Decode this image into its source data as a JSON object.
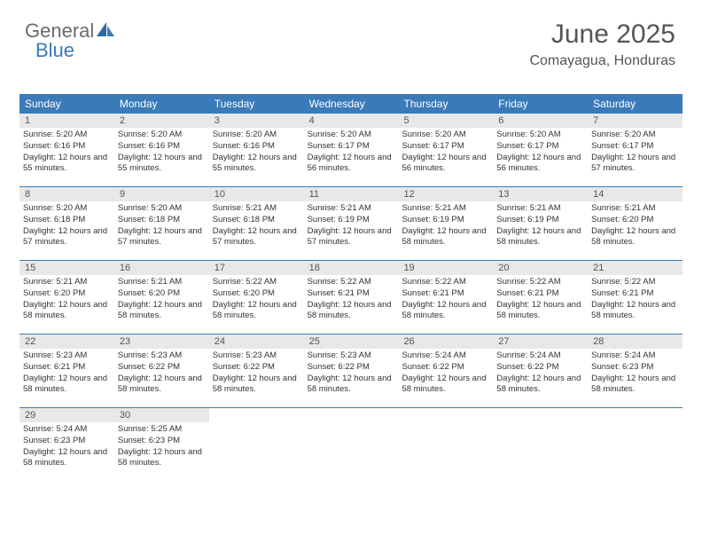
{
  "logo": {
    "part1": "General",
    "part2": "Blue"
  },
  "title": {
    "month": "June 2025",
    "location": "Comayagua, Honduras"
  },
  "colors": {
    "header_bg": "#3a7ab8",
    "header_text": "#ffffff",
    "daynum_bg": "#e8e8e8",
    "body_text": "#333333",
    "row_border": "#3a7ab8",
    "logo_gray": "#6b6b6b",
    "logo_blue": "#3a7ab8"
  },
  "weekdays": [
    "Sunday",
    "Monday",
    "Tuesday",
    "Wednesday",
    "Thursday",
    "Friday",
    "Saturday"
  ],
  "weeks": [
    [
      {
        "n": "1",
        "sr": "5:20 AM",
        "ss": "6:16 PM",
        "dl": "12 hours and 55 minutes."
      },
      {
        "n": "2",
        "sr": "5:20 AM",
        "ss": "6:16 PM",
        "dl": "12 hours and 55 minutes."
      },
      {
        "n": "3",
        "sr": "5:20 AM",
        "ss": "6:16 PM",
        "dl": "12 hours and 55 minutes."
      },
      {
        "n": "4",
        "sr": "5:20 AM",
        "ss": "6:17 PM",
        "dl": "12 hours and 56 minutes."
      },
      {
        "n": "5",
        "sr": "5:20 AM",
        "ss": "6:17 PM",
        "dl": "12 hours and 56 minutes."
      },
      {
        "n": "6",
        "sr": "5:20 AM",
        "ss": "6:17 PM",
        "dl": "12 hours and 56 minutes."
      },
      {
        "n": "7",
        "sr": "5:20 AM",
        "ss": "6:17 PM",
        "dl": "12 hours and 57 minutes."
      }
    ],
    [
      {
        "n": "8",
        "sr": "5:20 AM",
        "ss": "6:18 PM",
        "dl": "12 hours and 57 minutes."
      },
      {
        "n": "9",
        "sr": "5:20 AM",
        "ss": "6:18 PM",
        "dl": "12 hours and 57 minutes."
      },
      {
        "n": "10",
        "sr": "5:21 AM",
        "ss": "6:18 PM",
        "dl": "12 hours and 57 minutes."
      },
      {
        "n": "11",
        "sr": "5:21 AM",
        "ss": "6:19 PM",
        "dl": "12 hours and 57 minutes."
      },
      {
        "n": "12",
        "sr": "5:21 AM",
        "ss": "6:19 PM",
        "dl": "12 hours and 58 minutes."
      },
      {
        "n": "13",
        "sr": "5:21 AM",
        "ss": "6:19 PM",
        "dl": "12 hours and 58 minutes."
      },
      {
        "n": "14",
        "sr": "5:21 AM",
        "ss": "6:20 PM",
        "dl": "12 hours and 58 minutes."
      }
    ],
    [
      {
        "n": "15",
        "sr": "5:21 AM",
        "ss": "6:20 PM",
        "dl": "12 hours and 58 minutes."
      },
      {
        "n": "16",
        "sr": "5:21 AM",
        "ss": "6:20 PM",
        "dl": "12 hours and 58 minutes."
      },
      {
        "n": "17",
        "sr": "5:22 AM",
        "ss": "6:20 PM",
        "dl": "12 hours and 58 minutes."
      },
      {
        "n": "18",
        "sr": "5:22 AM",
        "ss": "6:21 PM",
        "dl": "12 hours and 58 minutes."
      },
      {
        "n": "19",
        "sr": "5:22 AM",
        "ss": "6:21 PM",
        "dl": "12 hours and 58 minutes."
      },
      {
        "n": "20",
        "sr": "5:22 AM",
        "ss": "6:21 PM",
        "dl": "12 hours and 58 minutes."
      },
      {
        "n": "21",
        "sr": "5:22 AM",
        "ss": "6:21 PM",
        "dl": "12 hours and 58 minutes."
      }
    ],
    [
      {
        "n": "22",
        "sr": "5:23 AM",
        "ss": "6:21 PM",
        "dl": "12 hours and 58 minutes."
      },
      {
        "n": "23",
        "sr": "5:23 AM",
        "ss": "6:22 PM",
        "dl": "12 hours and 58 minutes."
      },
      {
        "n": "24",
        "sr": "5:23 AM",
        "ss": "6:22 PM",
        "dl": "12 hours and 58 minutes."
      },
      {
        "n": "25",
        "sr": "5:23 AM",
        "ss": "6:22 PM",
        "dl": "12 hours and 58 minutes."
      },
      {
        "n": "26",
        "sr": "5:24 AM",
        "ss": "6:22 PM",
        "dl": "12 hours and 58 minutes."
      },
      {
        "n": "27",
        "sr": "5:24 AM",
        "ss": "6:22 PM",
        "dl": "12 hours and 58 minutes."
      },
      {
        "n": "28",
        "sr": "5:24 AM",
        "ss": "6:23 PM",
        "dl": "12 hours and 58 minutes."
      }
    ],
    [
      {
        "n": "29",
        "sr": "5:24 AM",
        "ss": "6:23 PM",
        "dl": "12 hours and 58 minutes."
      },
      {
        "n": "30",
        "sr": "5:25 AM",
        "ss": "6:23 PM",
        "dl": "12 hours and 58 minutes."
      },
      null,
      null,
      null,
      null,
      null
    ]
  ],
  "labels": {
    "sunrise": "Sunrise: ",
    "sunset": "Sunset: ",
    "daylight": "Daylight: "
  }
}
